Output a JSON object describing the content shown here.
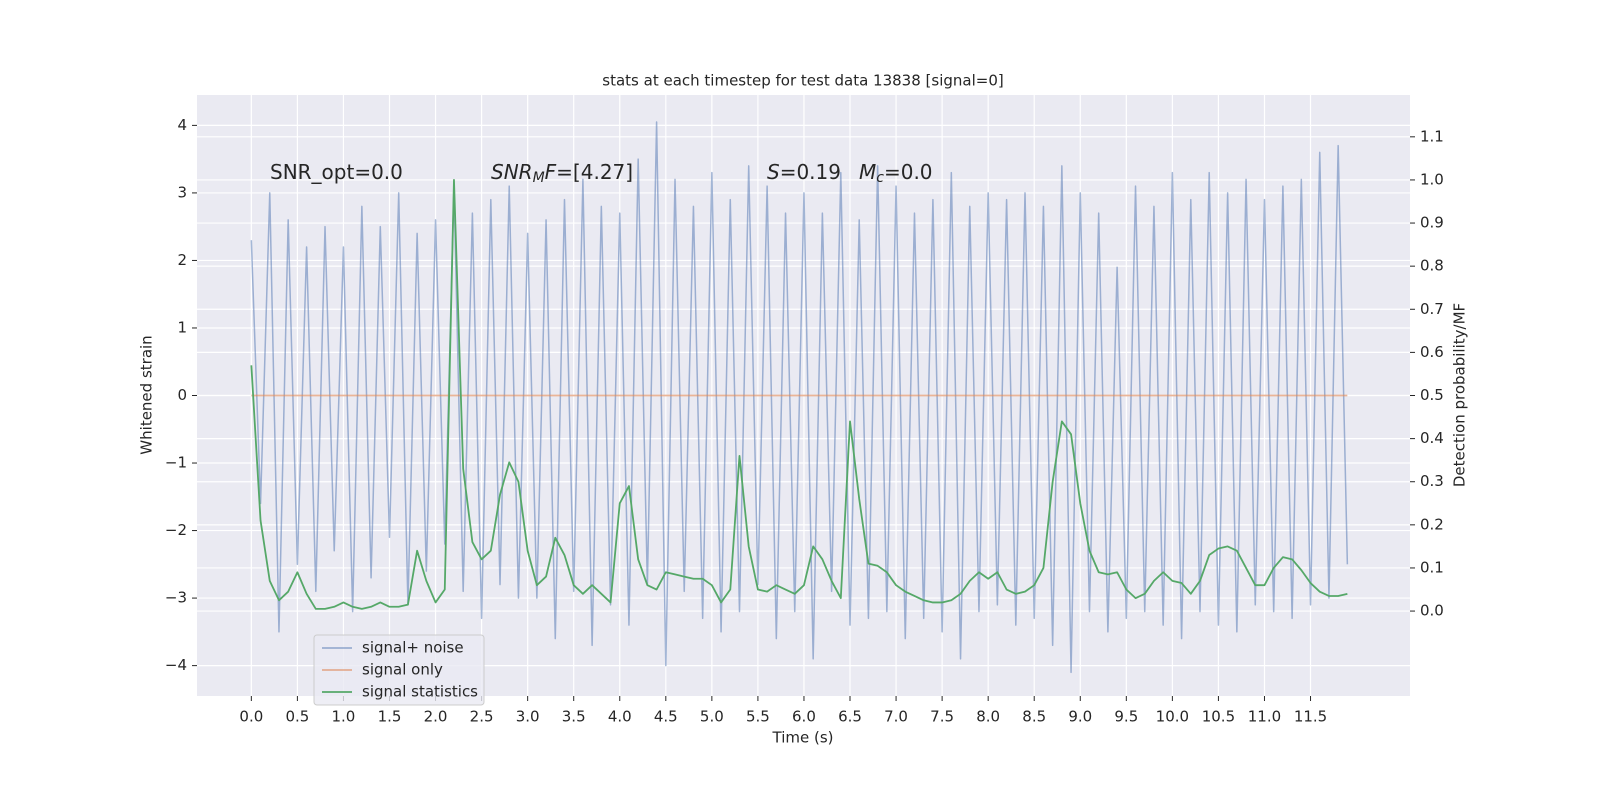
{
  "chart_data": {
    "type": "line",
    "title": "stats at each timestep for test data 13838 [signal=0]",
    "xlabel": "Time (s)",
    "ylabel": "Whitened strain",
    "y2label": "Detection probability/MF",
    "annotations": [
      [
        {
          "t": "SNR_opt=0.0",
          "style": "normal"
        }
      ],
      [
        {
          "t": "SNR",
          "style": "italic"
        },
        {
          "t": "M",
          "style": "sub"
        },
        {
          "t": "F",
          "style": "italic"
        },
        {
          "t": "=[4.27]",
          "style": "normal"
        }
      ],
      [
        {
          "t": "S",
          "style": "italic"
        },
        {
          "t": "=0.19",
          "style": "normal"
        }
      ],
      [
        {
          "t": "M",
          "style": "italic"
        },
        {
          "t": "c",
          "style": "sub"
        },
        {
          "t": "=0.0",
          "style": "normal"
        }
      ]
    ],
    "xlim": [
      -0.59,
      12.58
    ],
    "ylim": [
      -4.45,
      4.45
    ],
    "y2lim": [
      -0.197,
      1.197
    ],
    "xticks": [
      {
        "value": 0,
        "label": "0.0"
      },
      0.5,
      {
        "value": 1,
        "label": "1.0"
      },
      1.5,
      {
        "value": 2,
        "label": "2.0"
      },
      2.5,
      {
        "value": 3,
        "label": "3.0"
      },
      3.5,
      {
        "value": 4,
        "label": "4.0"
      },
      4.5,
      {
        "value": 5,
        "label": "5.0"
      },
      5.5,
      {
        "value": 6,
        "label": "6.0"
      },
      6.5,
      {
        "value": 7,
        "label": "7.0"
      },
      7.5,
      {
        "value": 8,
        "label": "8.0"
      },
      8.5,
      {
        "value": 9,
        "label": "9.0"
      },
      9.5,
      {
        "value": 10,
        "label": "10.0"
      },
      10.5,
      {
        "value": 11,
        "label": "11.0"
      },
      11.5
    ],
    "yticks": [
      {
        "value": -4,
        "label": "−4"
      },
      {
        "value": -3,
        "label": "−3"
      },
      {
        "value": -2,
        "label": "−2"
      },
      {
        "value": -1,
        "label": "−1"
      },
      0,
      1,
      2,
      3,
      4
    ],
    "y2ticks": [
      {
        "value": 0,
        "label": "0.0"
      },
      0.1,
      0.2,
      0.3,
      0.4,
      0.5,
      0.6,
      0.7,
      0.8,
      0.9,
      {
        "value": 1,
        "label": "1.0"
      },
      1.1
    ],
    "grid": true,
    "legend": "lower left",
    "x": [
      0,
      0.1,
      0.2,
      0.3,
      0.4,
      0.5,
      0.6,
      0.7,
      0.8,
      0.9,
      1,
      1.1,
      1.2,
      1.3,
      1.4,
      1.5,
      1.6,
      1.7,
      1.8,
      1.9,
      2,
      2.1,
      2.2,
      2.3,
      2.4,
      2.5,
      2.6,
      2.7,
      2.8,
      2.9,
      3,
      3.1,
      3.2,
      3.3,
      3.4,
      3.5,
      3.6,
      3.7,
      3.8,
      3.9,
      4,
      4.1,
      4.2,
      4.3,
      4.4,
      4.5,
      4.6,
      4.7,
      4.8,
      4.9,
      5,
      5.1,
      5.2,
      5.3,
      5.4,
      5.5,
      5.6,
      5.7,
      5.8,
      5.9,
      6,
      6.1,
      6.2,
      6.3,
      6.4,
      6.5,
      6.6,
      6.7,
      6.8,
      6.9,
      7,
      7.1,
      7.2,
      7.3,
      7.4,
      7.5,
      7.6,
      7.7,
      7.8,
      7.9,
      8,
      8.1,
      8.2,
      8.3,
      8.4,
      8.5,
      8.6,
      8.7,
      8.8,
      8.9,
      9,
      9.1,
      9.2,
      9.3,
      9.4,
      9.5,
      9.6,
      9.7,
      9.8,
      9.9,
      10,
      10.1,
      10.2,
      10.3,
      10.4,
      10.5,
      10.6,
      10.7,
      10.8,
      10.9,
      11,
      11.1,
      11.2,
      11.3,
      11.4,
      11.5,
      11.6,
      11.7,
      11.8,
      11.9
    ],
    "series": [
      {
        "name": "signal+ noise",
        "color": "#4c72b0",
        "opacity": 0.5,
        "values": [
          2.3,
          -1.6,
          3.0,
          -3.5,
          2.6,
          -2.5,
          2.2,
          -2.9,
          2.5,
          -2.3,
          2.2,
          -3.2,
          2.8,
          -2.7,
          2.5,
          -2.1,
          3.0,
          -3.1,
          2.4,
          -2.6,
          2.6,
          -2.2,
          3.1,
          -2.9,
          2.7,
          -3.3,
          2.9,
          -2.8,
          3.1,
          -3.0,
          2.4,
          -3.0,
          2.6,
          -3.6,
          2.9,
          -2.9,
          3.2,
          -3.7,
          2.8,
          -3.1,
          2.7,
          -3.4,
          3.5,
          -2.8,
          4.05,
          -4.0,
          3.2,
          -2.9,
          2.8,
          -3.3,
          3.3,
          -3.5,
          2.9,
          -3.2,
          3.4,
          -2.8,
          3.1,
          -3.6,
          2.7,
          -3.2,
          3.0,
          -3.9,
          2.7,
          -2.9,
          3.3,
          -3.4,
          2.6,
          -3.3,
          3.4,
          -3.2,
          3.1,
          -3.6,
          2.7,
          -3.3,
          2.9,
          -3.5,
          3.3,
          -3.9,
          2.8,
          -3.2,
          3.0,
          -3.1,
          2.9,
          -3.4,
          3.0,
          -3.3,
          2.8,
          -3.7,
          3.4,
          -4.1,
          3.0,
          -3.2,
          2.7,
          -3.5,
          1.9,
          -3.3,
          3.1,
          -3.2,
          2.8,
          -3.4,
          3.3,
          -3.6,
          2.9,
          -3.2,
          3.3,
          -3.4,
          3.0,
          -3.5,
          3.2,
          -3.1,
          2.9,
          -3.2,
          3.1,
          -3.3,
          3.2,
          -3.1,
          3.6,
          -3.0,
          3.7,
          -2.5
        ]
      },
      {
        "name": "signal only",
        "color": "#dd8452",
        "opacity": 0.6,
        "x": [
          0,
          11.9
        ],
        "values": [
          0,
          0
        ]
      },
      {
        "name": "signal statistics",
        "color": "#55a868",
        "opacity": 1,
        "axis": "y2",
        "values": [
          0.57,
          0.21,
          0.07,
          0.025,
          0.045,
          0.09,
          0.04,
          0.005,
          0.005,
          0.01,
          0.02,
          0.01,
          0.005,
          0.01,
          0.02,
          0.01,
          0.01,
          0.015,
          0.14,
          0.07,
          0.02,
          0.05,
          1.0,
          0.33,
          0.16,
          0.12,
          0.14,
          0.27,
          0.345,
          0.3,
          0.14,
          0.06,
          0.08,
          0.17,
          0.13,
          0.06,
          0.04,
          0.06,
          0.04,
          0.02,
          0.25,
          0.29,
          0.12,
          0.06,
          0.05,
          0.09,
          0.085,
          0.08,
          0.075,
          0.075,
          0.06,
          0.02,
          0.05,
          0.36,
          0.15,
          0.05,
          0.045,
          0.06,
          0.05,
          0.04,
          0.06,
          0.15,
          0.12,
          0.07,
          0.03,
          0.44,
          0.26,
          0.11,
          0.105,
          0.09,
          0.06,
          0.045,
          0.035,
          0.025,
          0.02,
          0.02,
          0.025,
          0.04,
          0.07,
          0.09,
          0.075,
          0.09,
          0.05,
          0.04,
          0.045,
          0.06,
          0.1,
          0.3,
          0.44,
          0.41,
          0.25,
          0.14,
          0.09,
          0.085,
          0.09,
          0.05,
          0.03,
          0.04,
          0.07,
          0.09,
          0.07,
          0.065,
          0.04,
          0.07,
          0.13,
          0.145,
          0.15,
          0.14,
          0.1,
          0.06,
          0.06,
          0.1,
          0.125,
          0.12,
          0.095,
          0.065,
          0.045,
          0.035,
          0.035,
          0.04
        ]
      }
    ]
  }
}
